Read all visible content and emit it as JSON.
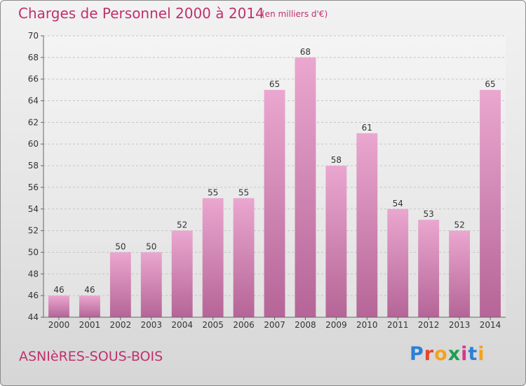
{
  "title": "Charges de Personnel 2000 à 2014",
  "subtitle": "(en milliers d'€)",
  "commune": "ASNIèRES-SOUS-BOIS",
  "logo": {
    "text": "Proxiti",
    "colors": [
      "#2e7fd6",
      "#e8452c",
      "#f4a21c",
      "#1f9e4f",
      "#d6368f",
      "#2e7fd6",
      "#f4a21c"
    ]
  },
  "colors": {
    "bar_top": "#eaa7cf",
    "bar_bottom": "#b56597",
    "accent": "#c0306e"
  },
  "chart_data": {
    "type": "bar",
    "categories": [
      "2000",
      "2001",
      "2002",
      "2003",
      "2004",
      "2005",
      "2006",
      "2007",
      "2008",
      "2009",
      "2010",
      "2011",
      "2012",
      "2013",
      "2014"
    ],
    "values": [
      46,
      46,
      50,
      50,
      52,
      55,
      55,
      65,
      68,
      58,
      61,
      54,
      53,
      52,
      65
    ],
    "ylim": [
      44,
      70
    ],
    "yticks": [
      44,
      46,
      48,
      50,
      52,
      54,
      56,
      58,
      60,
      62,
      64,
      66,
      68,
      70
    ],
    "grid": true,
    "xlabel": "",
    "ylabel": ""
  }
}
